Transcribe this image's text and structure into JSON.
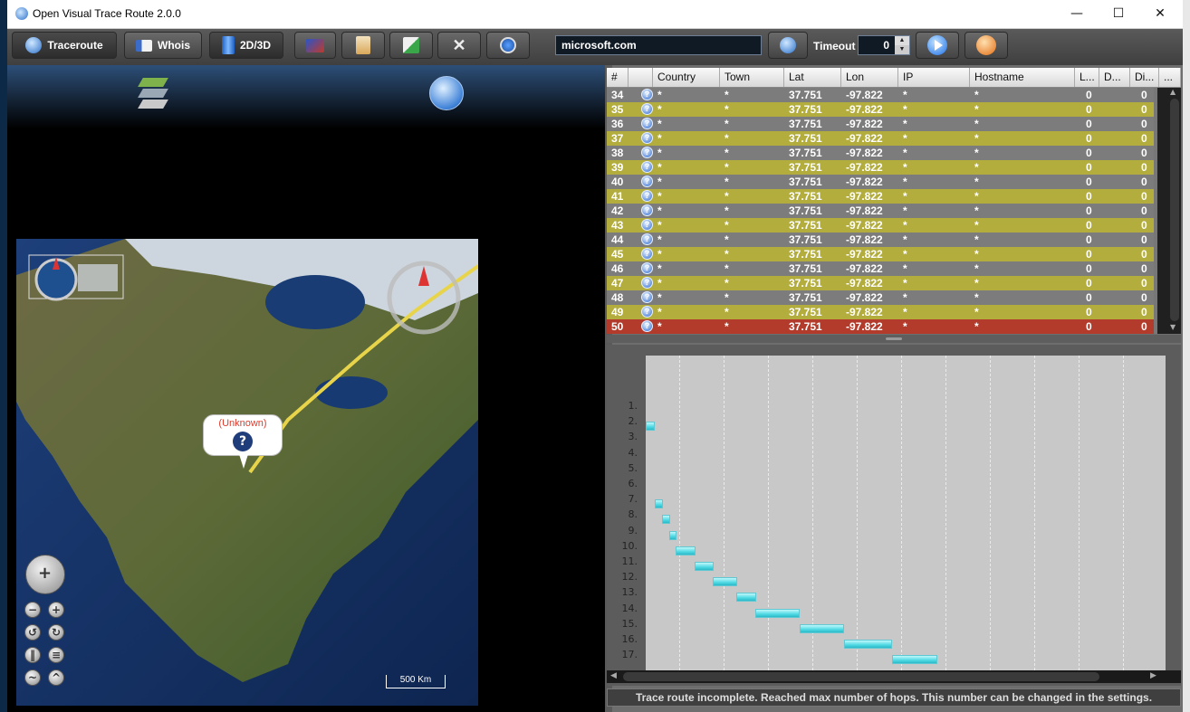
{
  "window": {
    "title": "Open Visual Trace Route 2.0.0",
    "controls": {
      "minimize": "—",
      "maximize": "☐",
      "close": "✕"
    }
  },
  "toolbar": {
    "traceroute_label": "Traceroute",
    "whois_label": "Whois",
    "view_toggle_label": "2D/3D",
    "host_value": "microsoft.com",
    "timeout_label": "Timeout",
    "timeout_value": "0"
  },
  "map": {
    "marker_label": "(Unknown)",
    "marker_icon": "?",
    "scale_label": "500 Km"
  },
  "table": {
    "columns": [
      "#",
      "",
      "Country",
      "Town",
      "Lat",
      "Lon",
      "IP",
      "Hostname",
      "L...",
      "D...",
      "Di...",
      "..."
    ],
    "rows": [
      {
        "num": "34",
        "country": "*",
        "town": "*",
        "lat": "37.751",
        "lon": "-97.822",
        "ip": "*",
        "host": "*",
        "l": "0",
        "d": "",
        "di": "0",
        "style": "gray"
      },
      {
        "num": "35",
        "country": "*",
        "town": "*",
        "lat": "37.751",
        "lon": "-97.822",
        "ip": "*",
        "host": "*",
        "l": "0",
        "d": "",
        "di": "0",
        "style": "olive"
      },
      {
        "num": "36",
        "country": "*",
        "town": "*",
        "lat": "37.751",
        "lon": "-97.822",
        "ip": "*",
        "host": "*",
        "l": "0",
        "d": "",
        "di": "0",
        "style": "gray"
      },
      {
        "num": "37",
        "country": "*",
        "town": "*",
        "lat": "37.751",
        "lon": "-97.822",
        "ip": "*",
        "host": "*",
        "l": "0",
        "d": "",
        "di": "0",
        "style": "olive"
      },
      {
        "num": "38",
        "country": "*",
        "town": "*",
        "lat": "37.751",
        "lon": "-97.822",
        "ip": "*",
        "host": "*",
        "l": "0",
        "d": "",
        "di": "0",
        "style": "gray"
      },
      {
        "num": "39",
        "country": "*",
        "town": "*",
        "lat": "37.751",
        "lon": "-97.822",
        "ip": "*",
        "host": "*",
        "l": "0",
        "d": "",
        "di": "0",
        "style": "olive"
      },
      {
        "num": "40",
        "country": "*",
        "town": "*",
        "lat": "37.751",
        "lon": "-97.822",
        "ip": "*",
        "host": "*",
        "l": "0",
        "d": "",
        "di": "0",
        "style": "gray"
      },
      {
        "num": "41",
        "country": "*",
        "town": "*",
        "lat": "37.751",
        "lon": "-97.822",
        "ip": "*",
        "host": "*",
        "l": "0",
        "d": "",
        "di": "0",
        "style": "olive"
      },
      {
        "num": "42",
        "country": "*",
        "town": "*",
        "lat": "37.751",
        "lon": "-97.822",
        "ip": "*",
        "host": "*",
        "l": "0",
        "d": "",
        "di": "0",
        "style": "gray"
      },
      {
        "num": "43",
        "country": "*",
        "town": "*",
        "lat": "37.751",
        "lon": "-97.822",
        "ip": "*",
        "host": "*",
        "l": "0",
        "d": "",
        "di": "0",
        "style": "olive"
      },
      {
        "num": "44",
        "country": "*",
        "town": "*",
        "lat": "37.751",
        "lon": "-97.822",
        "ip": "*",
        "host": "*",
        "l": "0",
        "d": "",
        "di": "0",
        "style": "gray"
      },
      {
        "num": "45",
        "country": "*",
        "town": "*",
        "lat": "37.751",
        "lon": "-97.822",
        "ip": "*",
        "host": "*",
        "l": "0",
        "d": "",
        "di": "0",
        "style": "olive"
      },
      {
        "num": "46",
        "country": "*",
        "town": "*",
        "lat": "37.751",
        "lon": "-97.822",
        "ip": "*",
        "host": "*",
        "l": "0",
        "d": "",
        "di": "0",
        "style": "gray"
      },
      {
        "num": "47",
        "country": "*",
        "town": "*",
        "lat": "37.751",
        "lon": "-97.822",
        "ip": "*",
        "host": "*",
        "l": "0",
        "d": "",
        "di": "0",
        "style": "olive"
      },
      {
        "num": "48",
        "country": "*",
        "town": "*",
        "lat": "37.751",
        "lon": "-97.822",
        "ip": "*",
        "host": "*",
        "l": "0",
        "d": "",
        "di": "0",
        "style": "gray"
      },
      {
        "num": "49",
        "country": "*",
        "town": "*",
        "lat": "37.751",
        "lon": "-97.822",
        "ip": "*",
        "host": "*",
        "l": "0",
        "d": "",
        "di": "0",
        "style": "olive"
      },
      {
        "num": "50",
        "country": "*",
        "town": "*",
        "lat": "37.751",
        "lon": "-97.822",
        "ip": "*",
        "host": "*",
        "l": "0",
        "d": "",
        "di": "0",
        "style": "red"
      }
    ]
  },
  "chart": {
    "hop_labels": [
      "1.",
      "2.",
      "3.",
      "4.",
      "5.",
      "6.",
      "7.",
      "8.",
      "9.",
      "10.",
      "11.",
      "12.",
      "13.",
      "14.",
      "15.",
      "16.",
      "17."
    ]
  },
  "status": {
    "message": "Trace route incomplete. Reached max number of hops. This number can be changed in the settings."
  },
  "colors": {
    "row_gray": "#7c7c7c",
    "row_olive": "#b3ad3d",
    "row_red": "#b33b2b",
    "route_line": "#e8d44a",
    "bar_cyan": "#5fe6ef"
  }
}
